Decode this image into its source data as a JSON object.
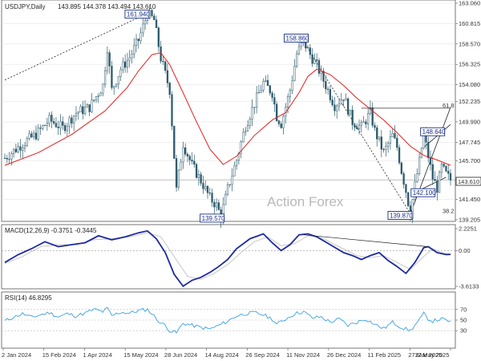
{
  "chart_data": {
    "type": "candlestick",
    "symbol_header": "USDJPY,Daily",
    "ohlc_header": "143.895 144.378 143.494 143.610",
    "last_price": 143.61,
    "last_price_label": "143.610",
    "watermark": "Action Forex",
    "price_axis": {
      "ylim": [
        139.205,
        163.06
      ],
      "ticks": [
        {
          "value": 163.06,
          "label": "163.060"
        },
        {
          "value": 160.815,
          "label": "160.815"
        },
        {
          "value": 158.57,
          "label": "158.570"
        },
        {
          "value": 156.325,
          "label": "156.325"
        },
        {
          "value": 154.08,
          "label": "154.080"
        },
        {
          "value": 152.235,
          "label": "152.235"
        },
        {
          "value": 149.99,
          "label": "149.990"
        },
        {
          "value": 147.745,
          "label": "147.745"
        },
        {
          "value": 145.7,
          "label": "145.700"
        },
        {
          "value": 141.45,
          "label": "141.450"
        },
        {
          "value": 139.205,
          "label": "139.205"
        }
      ]
    },
    "fib_levels": [
      {
        "value": 151.5,
        "label": "61.8"
      },
      {
        "value": 139.87,
        "label": "38.2"
      }
    ],
    "x_axis": {
      "labels": [
        "2 Jan 2024",
        "15 Feb 2024",
        "1 Apr 2024",
        "15 May 2024",
        "28 Jun 2024",
        "14 Aug 2024",
        "26 Sep 2024",
        "11 Nov 2024",
        "26 Dec 2024",
        "11 Feb 2025",
        "27 Mar 2025",
        "12 May 2025"
      ]
    },
    "swing_points": [
      {
        "label": "161.940",
        "index": 64,
        "value": 161.94
      },
      {
        "label": "139.570",
        "index": 97,
        "value": 139.57
      },
      {
        "label": "158.860",
        "index": 134,
        "value": 158.86
      },
      {
        "label": "139.870",
        "index": 182,
        "value": 139.87
      },
      {
        "label": "148.640",
        "index": 188,
        "value": 148.64
      },
      {
        "label": "142.100",
        "index": 183,
        "value": 142.1
      }
    ],
    "price_path": [
      [
        0,
        146.0
      ],
      [
        8,
        147.6
      ],
      [
        14,
        148.6
      ],
      [
        20,
        150.2
      ],
      [
        26,
        149.3
      ],
      [
        32,
        151.0
      ],
      [
        38,
        151.6
      ],
      [
        44,
        154.0
      ],
      [
        46,
        158.2
      ],
      [
        48,
        153.5
      ],
      [
        52,
        155.8
      ],
      [
        56,
        157.1
      ],
      [
        60,
        159.0
      ],
      [
        64,
        161.94
      ],
      [
        67,
        161.2
      ],
      [
        70,
        157.0
      ],
      [
        74,
        153.5
      ],
      [
        77,
        142.5
      ],
      [
        80,
        147.6
      ],
      [
        84,
        145.2
      ],
      [
        88,
        143.5
      ],
      [
        92,
        141.6
      ],
      [
        95,
        140.8
      ],
      [
        97,
        139.57
      ],
      [
        100,
        142.6
      ],
      [
        104,
        145.8
      ],
      [
        108,
        149.6
      ],
      [
        112,
        152.0
      ],
      [
        116,
        154.3
      ],
      [
        120,
        153.2
      ],
      [
        122,
        150.6
      ],
      [
        124,
        149.8
      ],
      [
        128,
        153.5
      ],
      [
        131,
        157.5
      ],
      [
        134,
        158.86
      ],
      [
        137,
        157.4
      ],
      [
        140,
        156.2
      ],
      [
        144,
        154.0
      ],
      [
        148,
        151.8
      ],
      [
        152,
        152.8
      ],
      [
        156,
        150.0
      ],
      [
        160,
        149.4
      ],
      [
        164,
        151.0
      ],
      [
        166,
        149.0
      ],
      [
        170,
        146.6
      ],
      [
        174,
        148.5
      ],
      [
        176,
        147.2
      ],
      [
        178,
        144.6
      ],
      [
        180,
        142.4
      ],
      [
        182,
        139.87
      ],
      [
        184,
        143.0
      ],
      [
        186,
        145.6
      ],
      [
        188,
        148.64
      ],
      [
        190,
        146.2
      ],
      [
        192,
        143.8
      ],
      [
        194,
        142.7
      ],
      [
        196,
        145.0
      ],
      [
        198,
        144.2
      ],
      [
        200,
        143.61
      ]
    ],
    "ma_path": [
      [
        0,
        145.2
      ],
      [
        15,
        146.6
      ],
      [
        30,
        148.6
      ],
      [
        45,
        151.2
      ],
      [
        55,
        153.8
      ],
      [
        60,
        155.6
      ],
      [
        66,
        157.4
      ],
      [
        70,
        157.6
      ],
      [
        74,
        156.3
      ],
      [
        80,
        153.2
      ],
      [
        86,
        150.0
      ],
      [
        92,
        147.0
      ],
      [
        98,
        145.3
      ],
      [
        104,
        146.2
      ],
      [
        112,
        148.5
      ],
      [
        120,
        150.2
      ],
      [
        126,
        151.0
      ],
      [
        132,
        153.2
      ],
      [
        136,
        155.0
      ],
      [
        140,
        155.8
      ],
      [
        146,
        155.2
      ],
      [
        152,
        154.0
      ],
      [
        158,
        152.6
      ],
      [
        164,
        151.4
      ],
      [
        170,
        150.2
      ],
      [
        176,
        148.8
      ],
      [
        182,
        147.3
      ],
      [
        188,
        146.3
      ],
      [
        194,
        145.8
      ],
      [
        200,
        145.2
      ]
    ],
    "ma_color": "#e02020",
    "candle_color": "#2c5a6b",
    "projection_lines": [
      [
        [
          0,
          154.6
        ],
        [
          64,
          161.94
        ]
      ],
      [
        [
          134,
          158.86
        ],
        [
          182,
          139.87
        ]
      ],
      [
        [
          182,
          139.87
        ],
        [
          200,
          151.6
        ]
      ],
      [
        [
          183,
          142.1
        ],
        [
          198,
          143.9
        ]
      ],
      [
        [
          188,
          147.2
        ],
        [
          200,
          149.7
        ]
      ]
    ],
    "macd": {
      "header": "MACD(12,26,9) -0.3751 -0.3445",
      "ylim": [
        -3.6133,
        2.2251
      ],
      "ticks": [
        {
          "value": 2.2251,
          "label": "2.2251"
        },
        {
          "value": 0.0,
          "label": "0.00"
        },
        {
          "value": -3.6133,
          "label": "-3.6133"
        }
      ],
      "main_path": [
        [
          0,
          -1.2
        ],
        [
          6,
          -0.4
        ],
        [
          12,
          0.2
        ],
        [
          18,
          0.9
        ],
        [
          24,
          0.4
        ],
        [
          30,
          0.6
        ],
        [
          36,
          0.8
        ],
        [
          42,
          1.5
        ],
        [
          48,
          1.1
        ],
        [
          54,
          1.4
        ],
        [
          60,
          1.8
        ],
        [
          64,
          2.0
        ],
        [
          68,
          1.2
        ],
        [
          72,
          -0.2
        ],
        [
          76,
          -2.4
        ],
        [
          80,
          -3.6
        ],
        [
          84,
          -3.0
        ],
        [
          88,
          -2.7
        ],
        [
          92,
          -2.2
        ],
        [
          96,
          -1.6
        ],
        [
          100,
          -0.9
        ],
        [
          104,
          0.2
        ],
        [
          110,
          1.2
        ],
        [
          116,
          1.7
        ],
        [
          120,
          0.8
        ],
        [
          124,
          0.0
        ],
        [
          128,
          0.6
        ],
        [
          132,
          1.6
        ],
        [
          136,
          1.7
        ],
        [
          140,
          1.4
        ],
        [
          146,
          0.6
        ],
        [
          152,
          -0.2
        ],
        [
          156,
          -0.5
        ],
        [
          160,
          -0.9
        ],
        [
          164,
          -0.5
        ],
        [
          168,
          -0.2
        ],
        [
          172,
          -1.0
        ],
        [
          176,
          -1.6
        ],
        [
          180,
          -2.3
        ],
        [
          184,
          -1.2
        ],
        [
          188,
          0.3
        ],
        [
          190,
          0.4
        ],
        [
          194,
          -0.2
        ],
        [
          198,
          -0.4
        ],
        [
          200,
          -0.38
        ]
      ],
      "signal_path": [
        [
          0,
          -1.3
        ],
        [
          8,
          -0.6
        ],
        [
          16,
          0.4
        ],
        [
          24,
          0.6
        ],
        [
          32,
          0.6
        ],
        [
          40,
          1.1
        ],
        [
          48,
          1.2
        ],
        [
          56,
          1.4
        ],
        [
          64,
          1.8
        ],
        [
          70,
          1.4
        ],
        [
          76,
          -0.6
        ],
        [
          82,
          -2.6
        ],
        [
          88,
          -2.9
        ],
        [
          94,
          -2.3
        ],
        [
          100,
          -1.4
        ],
        [
          106,
          -0.2
        ],
        [
          112,
          0.9
        ],
        [
          118,
          1.4
        ],
        [
          124,
          0.5
        ],
        [
          130,
          0.7
        ],
        [
          136,
          1.5
        ],
        [
          142,
          1.3
        ],
        [
          150,
          0.4
        ],
        [
          158,
          -0.5
        ],
        [
          164,
          -0.7
        ],
        [
          170,
          -0.5
        ],
        [
          176,
          -1.2
        ],
        [
          182,
          -1.9
        ],
        [
          188,
          -0.6
        ],
        [
          192,
          0.2
        ],
        [
          196,
          -0.2
        ],
        [
          200,
          -0.34
        ]
      ],
      "trend_line": [
        [
          134,
          1.6
        ],
        [
          190,
          0.4
        ]
      ]
    },
    "rsi": {
      "header": "RSI(14) 46.8295",
      "ylim": [
        0,
        100
      ],
      "ticks": [
        {
          "value": 70,
          "label": "70"
        },
        {
          "value": 50,
          "label": "50"
        },
        {
          "value": 30,
          "label": "30"
        }
      ],
      "path": [
        [
          0,
          48
        ],
        [
          4,
          56
        ],
        [
          8,
          62
        ],
        [
          12,
          55
        ],
        [
          16,
          60
        ],
        [
          20,
          64
        ],
        [
          24,
          56
        ],
        [
          28,
          62
        ],
        [
          32,
          58
        ],
        [
          36,
          63
        ],
        [
          40,
          70
        ],
        [
          44,
          66
        ],
        [
          46,
          72
        ],
        [
          48,
          58
        ],
        [
          52,
          65
        ],
        [
          56,
          63
        ],
        [
          60,
          68
        ],
        [
          64,
          70
        ],
        [
          66,
          62
        ],
        [
          70,
          44
        ],
        [
          72,
          40
        ],
        [
          74,
          30
        ],
        [
          77,
          26
        ],
        [
          80,
          44
        ],
        [
          84,
          40
        ],
        [
          88,
          36
        ],
        [
          92,
          33
        ],
        [
          96,
          40
        ],
        [
          100,
          48
        ],
        [
          104,
          58
        ],
        [
          108,
          62
        ],
        [
          112,
          64
        ],
        [
          116,
          60
        ],
        [
          120,
          52
        ],
        [
          122,
          42
        ],
        [
          126,
          52
        ],
        [
          130,
          62
        ],
        [
          134,
          66
        ],
        [
          138,
          54
        ],
        [
          142,
          56
        ],
        [
          146,
          46
        ],
        [
          150,
          52
        ],
        [
          154,
          40
        ],
        [
          158,
          46
        ],
        [
          162,
          52
        ],
        [
          166,
          42
        ],
        [
          170,
          34
        ],
        [
          174,
          46
        ],
        [
          178,
          36
        ],
        [
          182,
          30
        ],
        [
          186,
          50
        ],
        [
          188,
          62
        ],
        [
          190,
          52
        ],
        [
          192,
          48
        ],
        [
          196,
          52
        ],
        [
          200,
          47
        ]
      ],
      "color": "#3aa0e0"
    }
  }
}
